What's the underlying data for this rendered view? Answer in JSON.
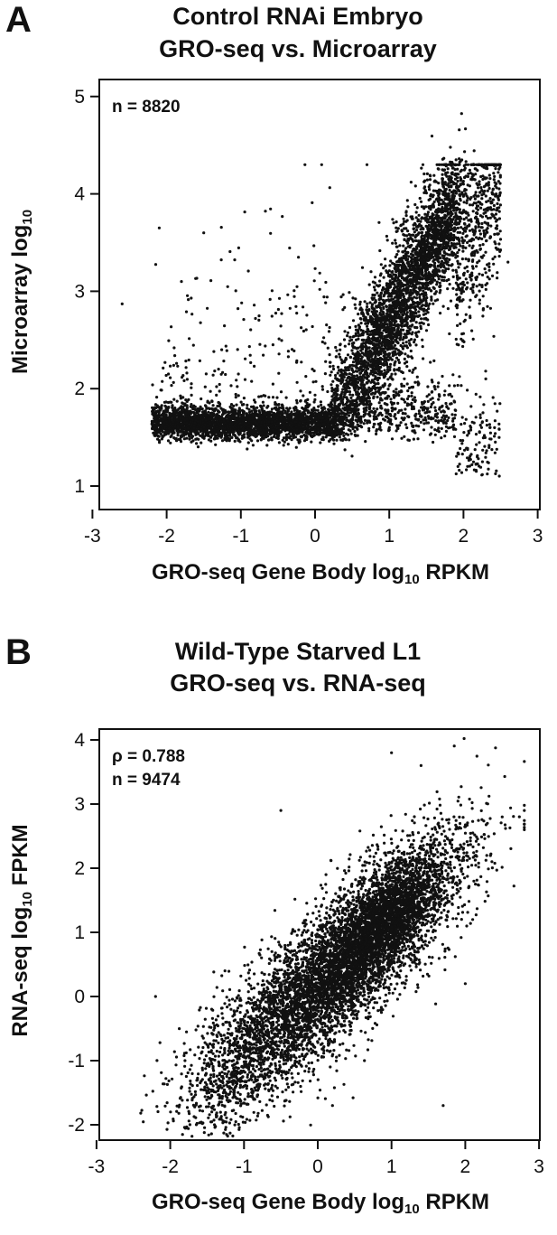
{
  "panels": [
    {
      "letter": "A",
      "title_line1": "Control RNAi Embryo",
      "title_line2": "GRO-seq vs. Microarray",
      "xlabel_pre": "GRO-seq Gene Body log",
      "xlabel_sub": "10",
      "xlabel_post": " RPKM",
      "ylabel_pre": "Microarray log",
      "ylabel_sub": "10",
      "ylabel_post": "",
      "annotations": [
        "n = 8820"
      ]
    },
    {
      "letter": "B",
      "title_line1": "Wild-Type Starved L1",
      "title_line2": "GRO-seq vs. RNA-seq",
      "xlabel_pre": "GRO-seq Gene Body log",
      "xlabel_sub": "10",
      "xlabel_post": " RPKM",
      "ylabel_pre": "RNA-seq log",
      "ylabel_sub": "10",
      "ylabel_post": " FPKM",
      "annotations": [
        "ρ = 0.788",
        "n = 9474"
      ]
    }
  ],
  "chart_data": [
    {
      "type": "scatter",
      "title": "Control RNAi Embryo GRO-seq vs. Microarray",
      "xlabel": "GRO-seq Gene Body log10 RPKM",
      "ylabel": "Microarray log10",
      "xlim": [
        -3.2,
        3.2
      ],
      "ylim": [
        1.1,
        5.2
      ],
      "xticks": [
        -3,
        -2,
        -1,
        0,
        1,
        2,
        3
      ],
      "yticks": [
        1,
        2,
        3,
        4,
        5
      ],
      "n": 8820,
      "grid": false,
      "legend": "none",
      "point_color": "#111111",
      "points_sample": [
        [
          -2.6,
          2.87
        ],
        [
          -2.1,
          3.65
        ],
        [
          -1.8,
          3.1
        ],
        [
          -1.5,
          3.6
        ],
        [
          -1.3,
          2.2
        ],
        [
          -2.0,
          1.55
        ],
        [
          -1.5,
          1.6
        ],
        [
          -1.0,
          1.6
        ],
        [
          -0.5,
          1.55
        ],
        [
          0.0,
          1.6
        ],
        [
          0.3,
          1.9
        ],
        [
          0.6,
          2.2
        ],
        [
          0.8,
          2.6
        ],
        [
          1.0,
          2.9
        ],
        [
          1.2,
          3.2
        ],
        [
          1.4,
          3.5
        ],
        [
          1.6,
          3.7
        ],
        [
          1.8,
          3.9
        ],
        [
          2.0,
          4.1
        ],
        [
          0.7,
          4.3
        ],
        [
          1.9,
          4.35
        ],
        [
          2.4,
          4.05
        ],
        [
          2.6,
          3.3
        ],
        [
          2.3,
          2.1
        ],
        [
          2.1,
          1.6
        ]
      ]
    },
    {
      "type": "scatter",
      "title": "Wild-Type Starved L1 GRO-seq vs. RNA-seq",
      "xlabel": "GRO-seq Gene Body log10 RPKM",
      "ylabel": "RNA-seq log10 FPKM",
      "xlim": [
        -3.2,
        3.2
      ],
      "ylim": [
        -2.2,
        4.2
      ],
      "xticks": [
        -3,
        -2,
        -1,
        0,
        1,
        2,
        3
      ],
      "yticks": [
        -2,
        -1,
        0,
        1,
        2,
        3,
        4
      ],
      "rho": 0.788,
      "n": 9474,
      "grid": false,
      "legend": "none",
      "point_color": "#111111",
      "points_sample": [
        [
          -2.2,
          0.0
        ],
        [
          -1.8,
          -1.0
        ],
        [
          -1.5,
          -1.5
        ],
        [
          -1.2,
          -1.0
        ],
        [
          -1.0,
          -0.5
        ],
        [
          -0.5,
          0.0
        ],
        [
          0.0,
          0.4
        ],
        [
          0.3,
          0.7
        ],
        [
          0.6,
          1.0
        ],
        [
          0.9,
          1.3
        ],
        [
          1.2,
          1.5
        ],
        [
          1.5,
          1.8
        ],
        [
          1.8,
          2.0
        ],
        [
          2.1,
          1.2
        ],
        [
          2.3,
          2.7
        ],
        [
          2.5,
          2.8
        ],
        [
          2.8,
          2.6
        ],
        [
          1.0,
          3.8
        ],
        [
          1.4,
          3.6
        ],
        [
          -0.5,
          2.9
        ],
        [
          -1.4,
          -2.0
        ],
        [
          -1.0,
          -1.4
        ],
        [
          0.2,
          -1.7
        ],
        [
          1.7,
          -1.7
        ],
        [
          2.0,
          0.2
        ]
      ]
    }
  ]
}
